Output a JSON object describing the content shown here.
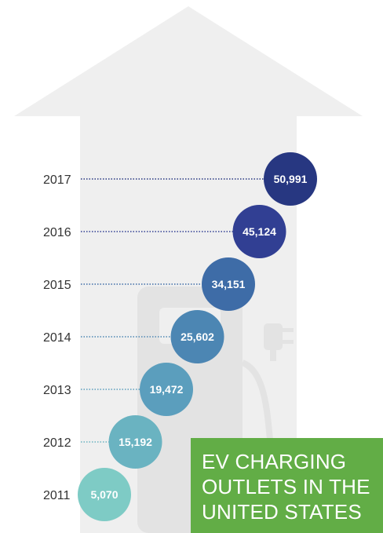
{
  "chart_data": {
    "type": "bubble-timeline",
    "categories": [
      "2011",
      "2012",
      "2013",
      "2014",
      "2015",
      "2016",
      "2017"
    ],
    "values": [
      5070,
      15192,
      19472,
      25602,
      34151,
      45124,
      50991
    ],
    "value_labels": [
      "5,070",
      "15,192",
      "19,472",
      "25,602",
      "34,151",
      "45,124",
      "50,991"
    ],
    "colors": [
      "#7ecbc5",
      "#6ab3c1",
      "#5b9ebd",
      "#4c86b3",
      "#3e6ca7",
      "#313f93",
      "#273781"
    ],
    "title_lines": [
      "EV CHARGING",
      "OUTLETS IN THE",
      "UNITED STATES"
    ],
    "title_color": "#62ad46"
  }
}
